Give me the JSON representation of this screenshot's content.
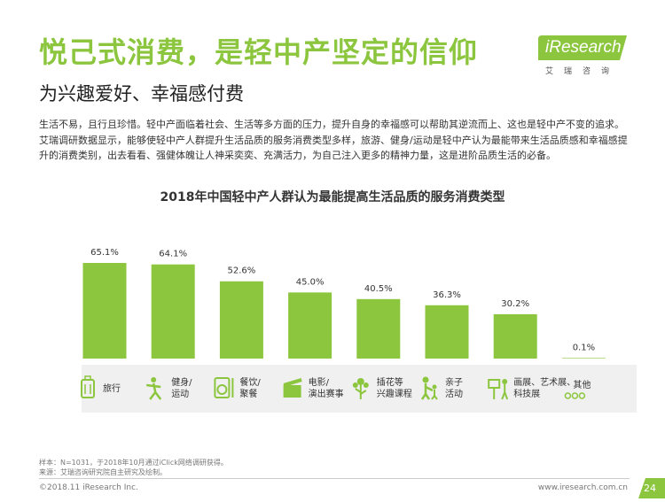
{
  "header": {
    "title": "悦己式消费，是轻中产坚定的信仰",
    "subtitle": "为兴趣爱好、幸福感付费"
  },
  "logo": {
    "brand": "iResearch",
    "sub": "艾瑞咨询"
  },
  "paragraph": "生活不易，且行且珍惜。轻中产面临着社会、生活等多方面的压力，提升自身的幸福感可以帮助其逆流而上、这也是轻中产不变的追求。艾瑞调研数据显示，能够使轻中产人群提升生活品质的服务消费类型多样，旅游、健身/运动是轻中产认为最能带来生活品质感和幸福感提升的消费类别，出去看看、强健体魄让人神采奕奕、充满活力，为自己注入更多的精神力量，这是进阶品质生活的必备。",
  "chart_data": {
    "type": "bar",
    "title": "2018年中国轻中产人群认为最能提高生活品质的服务消费类型",
    "categories": [
      "旅行",
      "健身/运动",
      "餐饮/聚餐",
      "电影/演出赛事",
      "插花等兴趣课程",
      "亲子活动",
      "画展、艺术展、科技展",
      "其他"
    ],
    "category_lines": [
      [
        "旅行"
      ],
      [
        "健身/",
        "运动"
      ],
      [
        "餐饮/",
        "聚餐"
      ],
      [
        "电影/",
        "演出赛事"
      ],
      [
        "插花等",
        "兴趣课程"
      ],
      [
        "亲子",
        "活动"
      ],
      [
        "画展、艺术展、",
        "科技展"
      ],
      [
        "其他"
      ]
    ],
    "values": [
      65.1,
      64.1,
      52.6,
      45.0,
      40.5,
      36.3,
      30.2,
      0.1
    ],
    "value_labels": [
      "65.1%",
      "64.1%",
      "52.6%",
      "45.0%",
      "40.5%",
      "36.3%",
      "30.2%",
      "0.1%"
    ],
    "icons": [
      "luggage-icon",
      "fitness-icon",
      "dining-icon",
      "film-clapper-icon",
      "flower-icon",
      "parent-child-icon",
      "exhibition-icon",
      "dots-icon"
    ],
    "unit": "%",
    "ylim": [
      0,
      70
    ],
    "bar_color": "#8cc63e",
    "panel_color": "#f0f0f0",
    "label_color": "#333333"
  },
  "footer": {
    "note_line1": "样本：N=1031，于2018年10月通过iClick网络调研获得。",
    "note_line2": "来源：艾瑞咨询研究院自主研究及绘制。",
    "copyright": "©2018.11 iResearch Inc.",
    "website": "www.iresearch.com.cn",
    "page": "24"
  },
  "colors": {
    "accent": "#8cc63e",
    "text": "#333333"
  }
}
